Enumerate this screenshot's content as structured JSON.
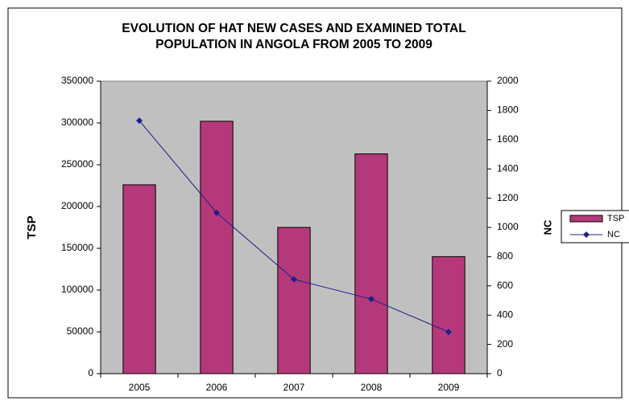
{
  "chart_data": {
    "type": "bar-line",
    "title": "EVOLUTION OF HAT NEW CASES AND EXAMINED TOTAL POPULATION IN ANGOLA FROM 2005 TO 2009",
    "y_label": "TSP",
    "y2_label": "NC",
    "categories": [
      "2005",
      "2006",
      "2007",
      "2008",
      "2009"
    ],
    "series": [
      {
        "name": "TSP",
        "type": "bar",
        "color": "#b5397a",
        "values": [
          226000,
          302000,
          175000,
          263000,
          140000
        ]
      },
      {
        "name": "NC",
        "type": "line",
        "axis": "y2",
        "color": "#1f1f8c",
        "values": [
          1730,
          1100,
          645,
          510,
          285
        ]
      }
    ],
    "ylim": [
      0,
      350000
    ],
    "yticks": [
      0,
      50000,
      100000,
      150000,
      200000,
      250000,
      300000,
      350000
    ],
    "y2lim": [
      0,
      2000
    ],
    "y2ticks": [
      0,
      200,
      400,
      600,
      800,
      1000,
      1200,
      1400,
      1600,
      1800,
      2000
    ],
    "legend": "right"
  }
}
